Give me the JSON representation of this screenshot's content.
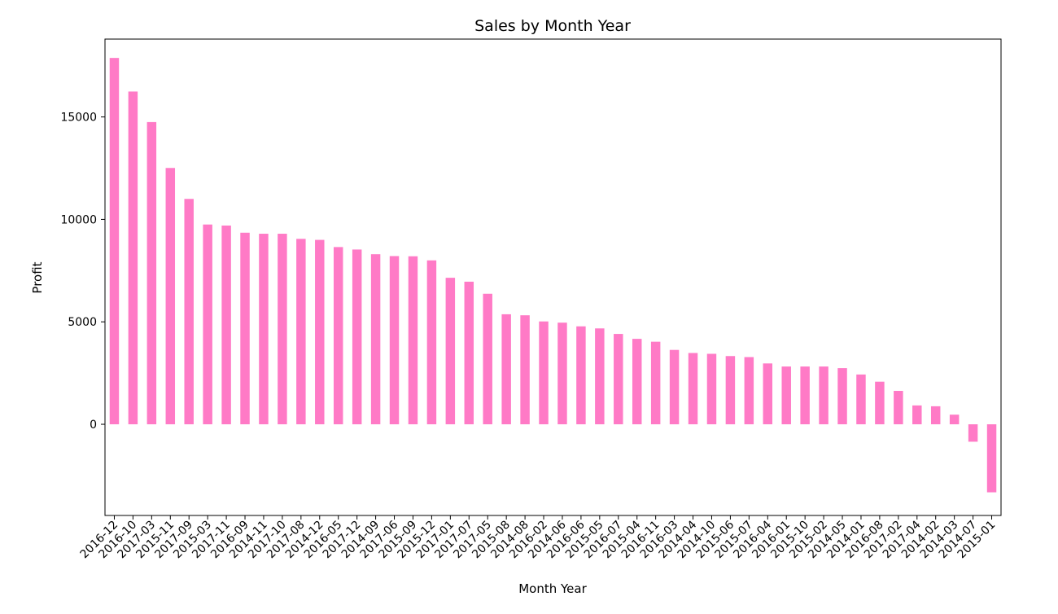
{
  "chart_data": {
    "type": "bar",
    "title": "Sales by Month Year",
    "xlabel": "Month Year",
    "ylabel": "Profit",
    "ylim": [
      -4450,
      18800
    ],
    "yticks": [
      0,
      5000,
      10000,
      15000
    ],
    "bar_color": "#ff7ac6",
    "grid": false,
    "categories": [
      "2016-12",
      "2016-10",
      "2017-03",
      "2015-11",
      "2017-09",
      "2015-03",
      "2017-11",
      "2016-09",
      "2014-11",
      "2017-10",
      "2017-08",
      "2014-12",
      "2016-05",
      "2017-12",
      "2014-09",
      "2017-06",
      "2015-09",
      "2015-12",
      "2017-01",
      "2017-07",
      "2017-05",
      "2015-08",
      "2014-08",
      "2016-02",
      "2014-06",
      "2016-06",
      "2015-05",
      "2016-07",
      "2015-04",
      "2016-11",
      "2016-03",
      "2014-04",
      "2014-10",
      "2015-06",
      "2015-07",
      "2016-04",
      "2016-01",
      "2015-10",
      "2015-02",
      "2014-05",
      "2014-01",
      "2016-08",
      "2017-02",
      "2017-04",
      "2014-02",
      "2014-03",
      "2014-07",
      "2015-01"
    ],
    "values": [
      17880,
      16240,
      14750,
      12510,
      11000,
      9750,
      9700,
      9350,
      9300,
      9300,
      9050,
      9000,
      8650,
      8530,
      8300,
      8210,
      8200,
      8000,
      7150,
      6960,
      6370,
      5370,
      5320,
      5020,
      4960,
      4780,
      4680,
      4410,
      4170,
      4030,
      3630,
      3480,
      3440,
      3330,
      3280,
      2970,
      2820,
      2820,
      2820,
      2740,
      2430,
      2080,
      1630,
      920,
      880,
      470,
      -850,
      -3320
    ]
  }
}
